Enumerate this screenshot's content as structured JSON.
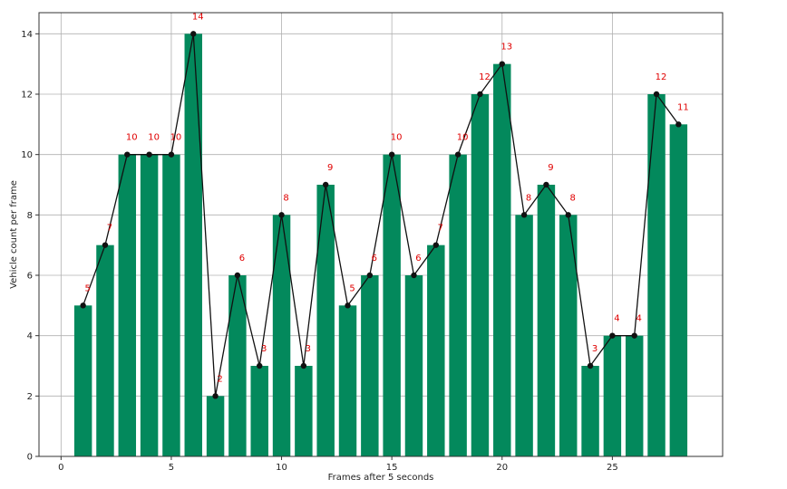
{
  "chart_data": {
    "type": "bar",
    "xlabel": "Frames after 5 seconds",
    "ylabel": "Vehicle count per frame",
    "x": [
      1,
      2,
      3,
      4,
      5,
      6,
      7,
      8,
      9,
      10,
      11,
      12,
      13,
      14,
      15,
      16,
      17,
      18,
      19,
      20,
      21,
      22,
      23,
      24,
      25,
      26,
      27,
      28
    ],
    "values": [
      5,
      7,
      10,
      10,
      10,
      14,
      2,
      6,
      3,
      8,
      3,
      9,
      5,
      6,
      10,
      6,
      7,
      10,
      12,
      13,
      8,
      9,
      8,
      3,
      4,
      4,
      12,
      11
    ],
    "xlim": [
      -1,
      30
    ],
    "ylim": [
      0,
      14.7
    ],
    "xticks": [
      0,
      5,
      10,
      15,
      20,
      25
    ],
    "yticks": [
      0,
      2,
      4,
      6,
      8,
      10,
      12,
      14
    ],
    "grid": true,
    "overlay": "line with markers through bar tops",
    "bar_color": "#03895c",
    "line_color": "#111111",
    "label_color": "#e00000"
  }
}
